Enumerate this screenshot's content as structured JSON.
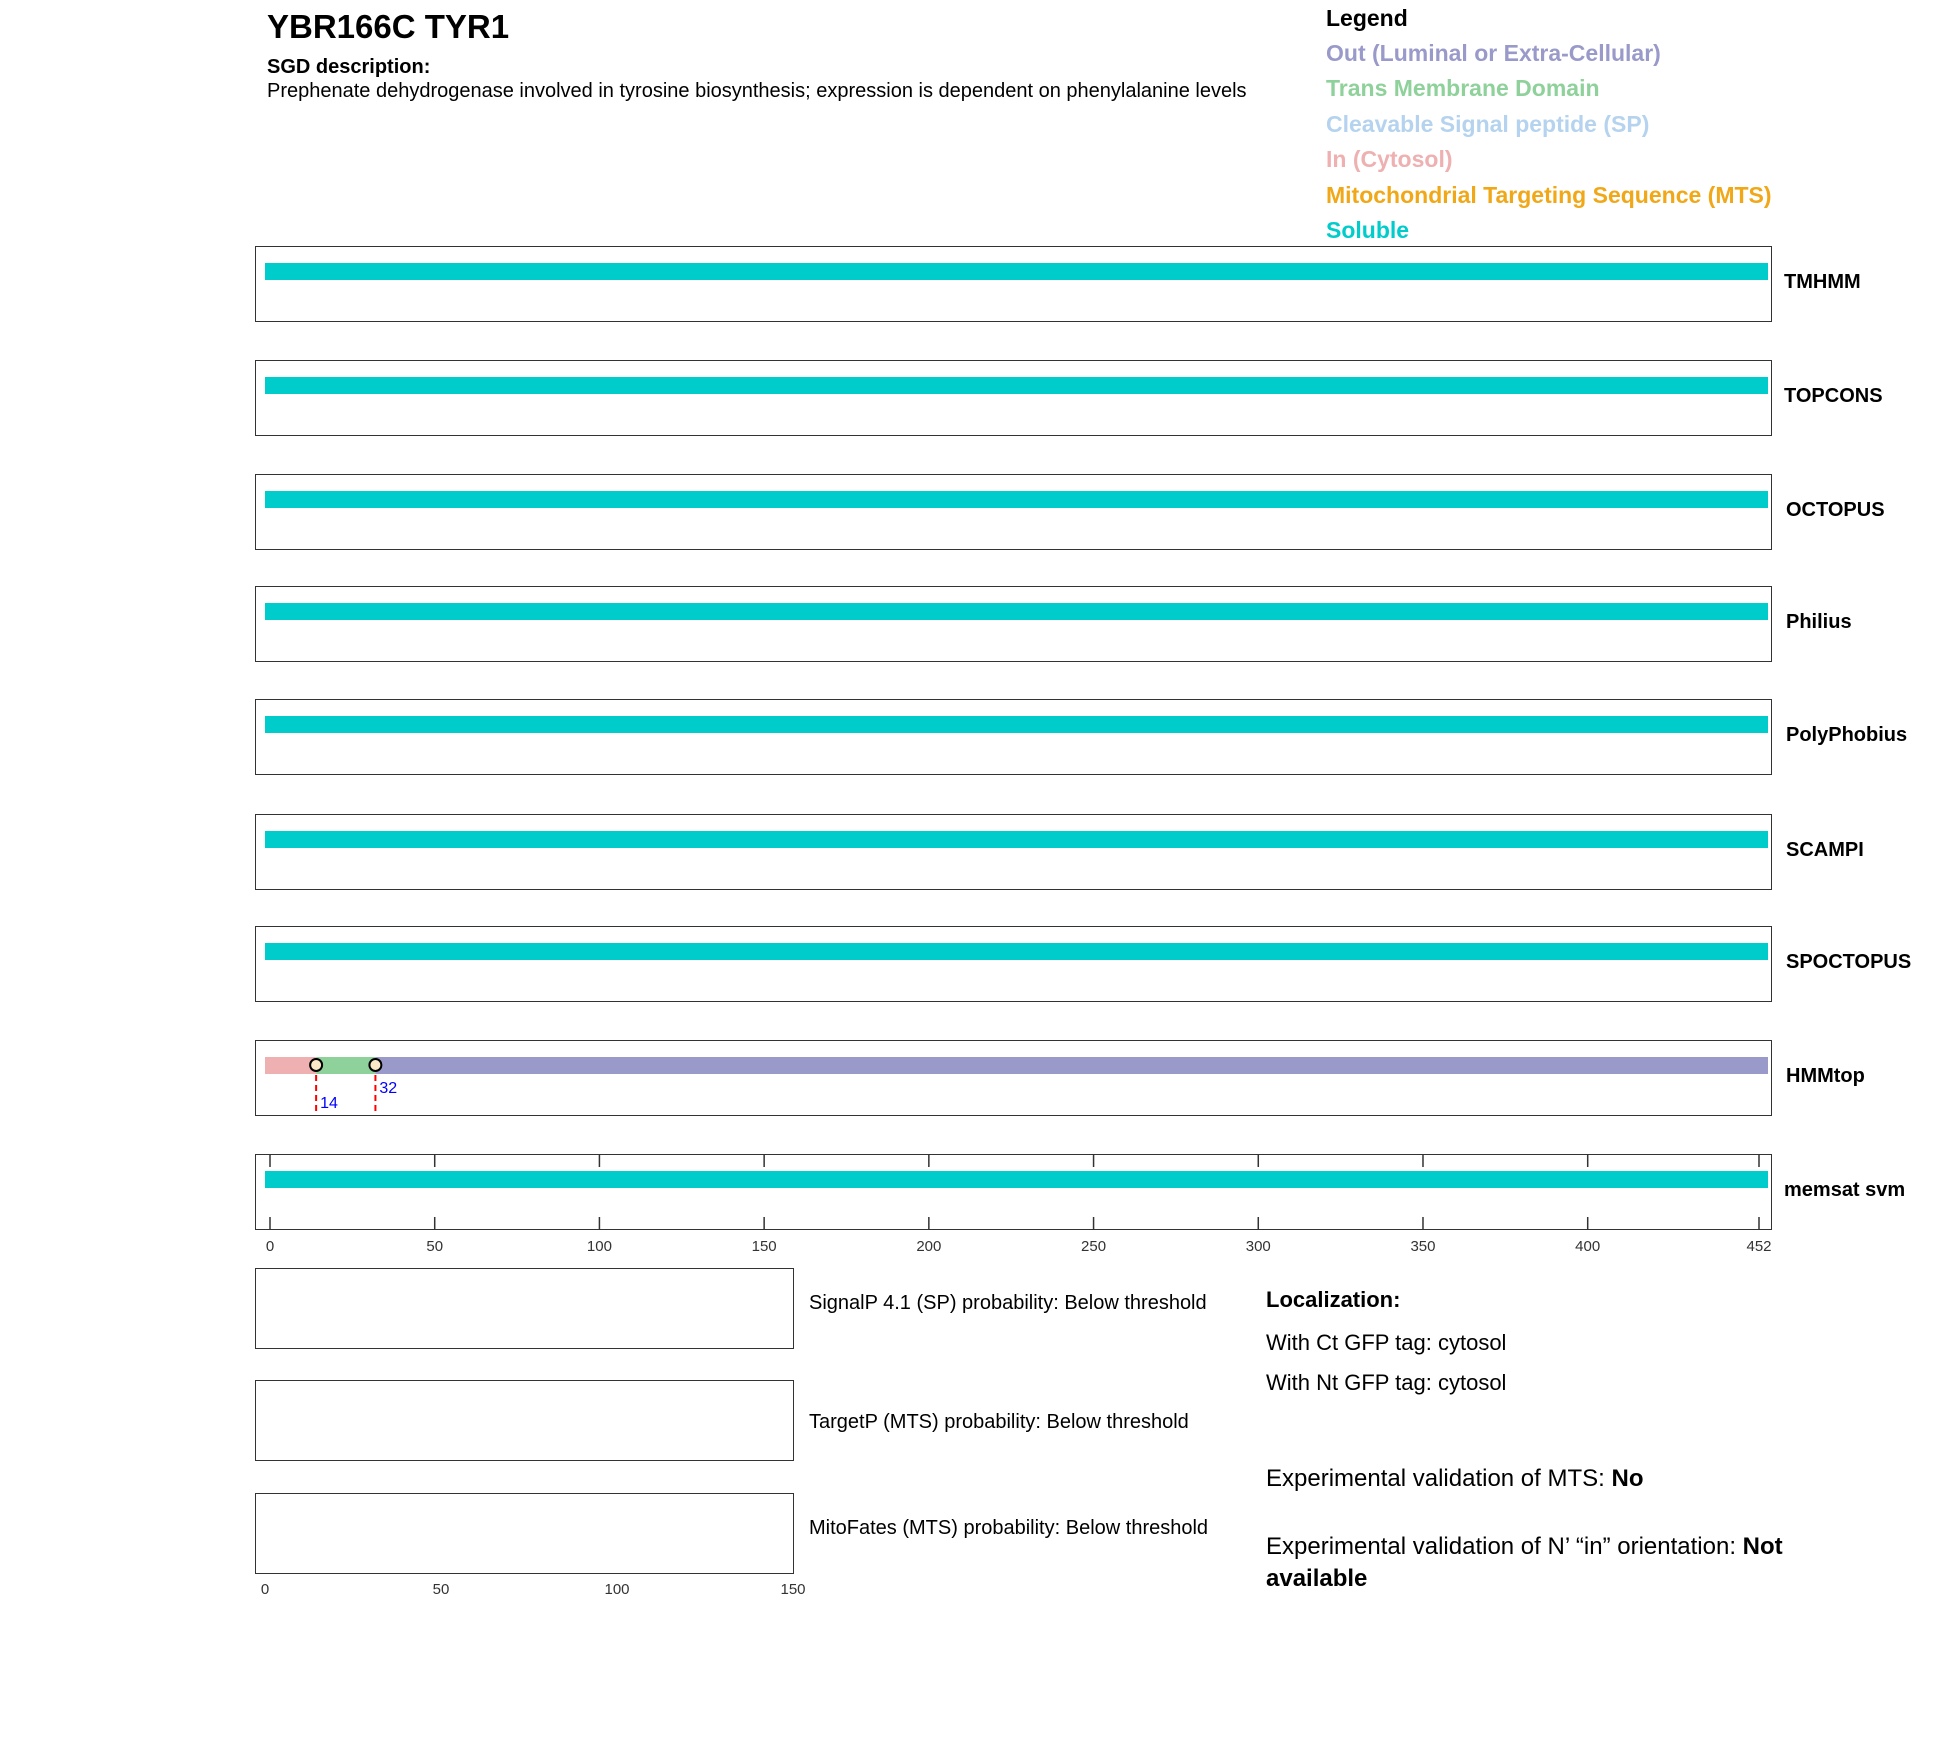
{
  "header": {
    "title": "YBR166C  TYR1",
    "sgd_heading": "SGD description:",
    "sgd_description": "Prephenate dehydrogenase involved in tyrosine biosynthesis; expression is dependent on phenylalanine levels"
  },
  "legend": {
    "heading": "Legend",
    "items": [
      {
        "label": "Out (Luminal or Extra-Cellular)",
        "color": "#9a9aca"
      },
      {
        "label": "Trans Membrane Domain",
        "color": "#8fd19a"
      },
      {
        "label": "Cleavable Signal peptide (SP)",
        "color": "#b5d3ee"
      },
      {
        "label": "In (Cytosol)",
        "color": "#eeb0b0"
      },
      {
        "label": "Mitochondrial Targeting Sequence (MTS)",
        "color": "#f0a818"
      },
      {
        "label": "Soluble",
        "color": "#00cccc"
      }
    ]
  },
  "chart_data": {
    "type": "bar",
    "protein_length": 452,
    "xlim": [
      0,
      452
    ],
    "xticks": [
      0,
      50,
      100,
      150,
      200,
      250,
      300,
      350,
      400,
      452
    ],
    "tracks": [
      {
        "name": "TMHMM",
        "segments": [
          {
            "start": 0,
            "end": 452,
            "type": "Soluble"
          }
        ]
      },
      {
        "name": "TOPCONS",
        "segments": [
          {
            "start": 0,
            "end": 452,
            "type": "Soluble"
          }
        ]
      },
      {
        "name": "OCTOPUS",
        "segments": [
          {
            "start": 0,
            "end": 452,
            "type": "Soluble"
          }
        ]
      },
      {
        "name": "Philius",
        "segments": [
          {
            "start": 0,
            "end": 452,
            "type": "Soluble"
          }
        ]
      },
      {
        "name": "PolyPhobius",
        "segments": [
          {
            "start": 0,
            "end": 452,
            "type": "Soluble"
          }
        ]
      },
      {
        "name": "SCAMPI",
        "segments": [
          {
            "start": 0,
            "end": 452,
            "type": "Soluble"
          }
        ]
      },
      {
        "name": "SPOCTOPUS",
        "segments": [
          {
            "start": 0,
            "end": 452,
            "type": "Soluble"
          }
        ]
      },
      {
        "name": "HMMtop",
        "segments": [
          {
            "start": 0,
            "end": 14,
            "type": "In (Cytosol)"
          },
          {
            "start": 14,
            "end": 32,
            "type": "Trans Membrane Domain"
          },
          {
            "start": 32,
            "end": 452,
            "type": "Out (Luminal or Extra-Cellular)"
          }
        ],
        "boundaries": [
          14,
          32
        ]
      },
      {
        "name": "memsat svm",
        "segments": [
          {
            "start": 0,
            "end": 452,
            "type": "Soluble"
          }
        ]
      }
    ],
    "prob_xlim": [
      0,
      150
    ],
    "prob_xticks": [
      0,
      50,
      100,
      150
    ],
    "prob_panels": [
      {
        "label": "SignalP 4.1 (SP) probability: Below threshold"
      },
      {
        "label": "TargetP (MTS) probability: Below threshold"
      },
      {
        "label": "MitoFates (MTS) probability: Below threshold"
      }
    ]
  },
  "localization": {
    "heading": "Localization:",
    "ct": "With Ct GFP tag: cytosol",
    "nt": "With Nt GFP tag: cytosol",
    "mts_label": "Experimental validation of MTS: ",
    "mts_value": "No",
    "orient_label": "Experimental validation of N’ “in” orientation: ",
    "orient_value": "Not available"
  }
}
